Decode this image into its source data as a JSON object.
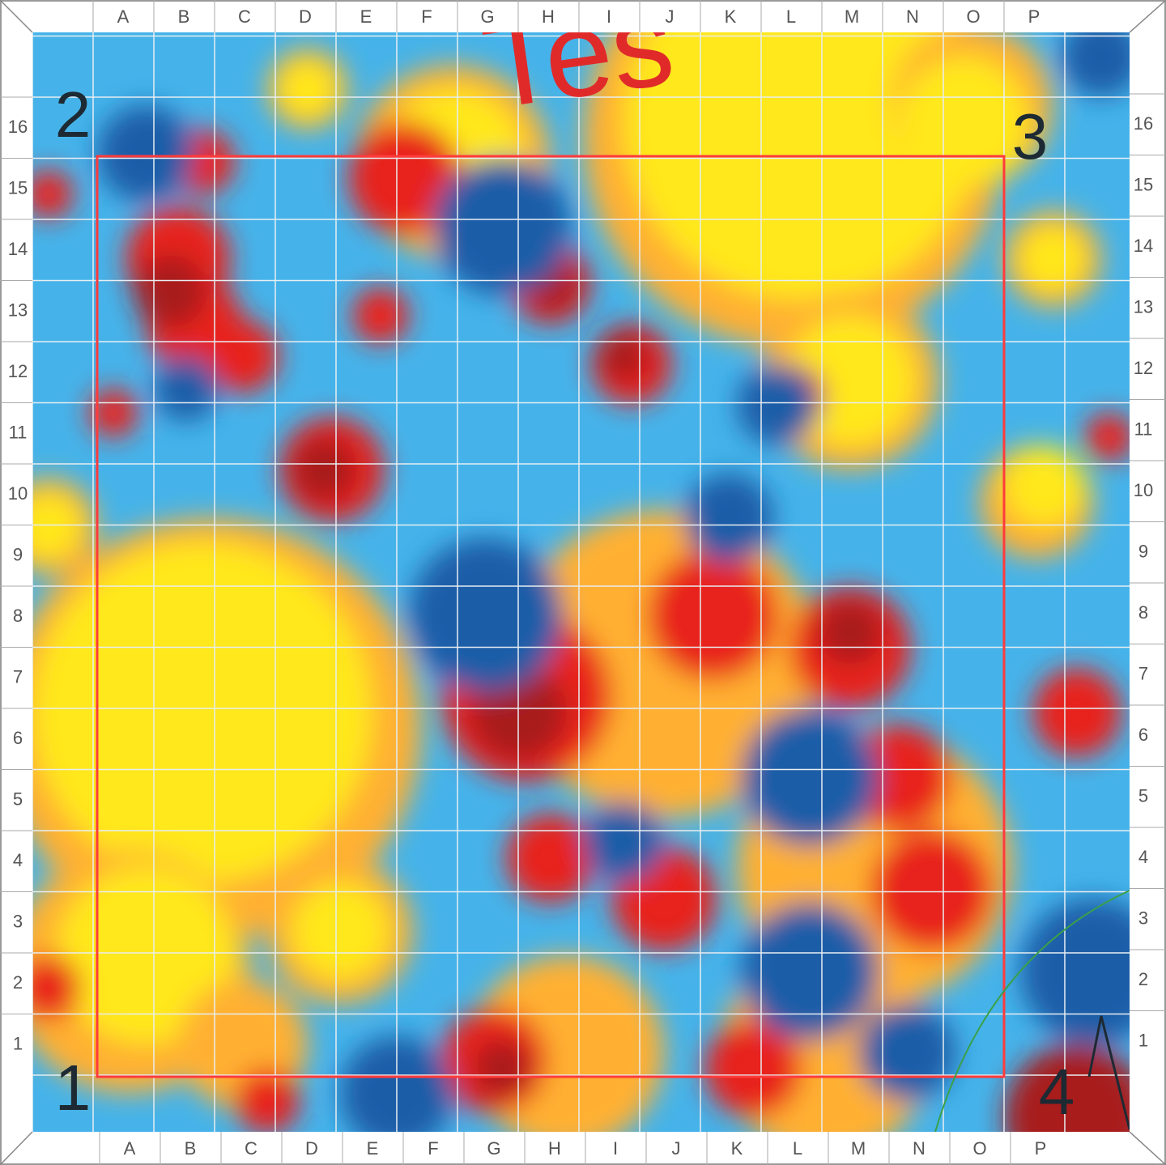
{
  "columns": [
    "A",
    "B",
    "C",
    "D",
    "E",
    "F",
    "G",
    "H",
    "I",
    "J",
    "K",
    "L",
    "M",
    "N",
    "O",
    "P"
  ],
  "rows": [
    "16",
    "15",
    "14",
    "13",
    "12",
    "11",
    "10",
    "9",
    "8",
    "7",
    "6",
    "5",
    "4",
    "3",
    "2",
    "1"
  ],
  "corners": {
    "bottom_left": "1",
    "top_left": "2",
    "top_right": "3",
    "bottom_right": "4"
  },
  "annotation": "Tes"
}
